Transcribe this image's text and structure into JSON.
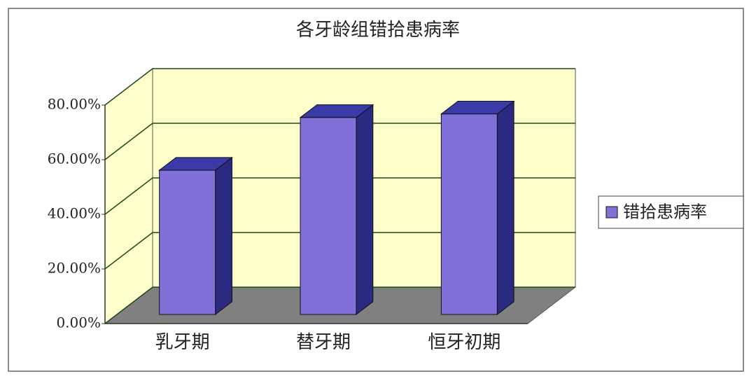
{
  "chart_data": {
    "type": "bar",
    "title": "各牙龄组错拾患病率",
    "categories": [
      "乳牙期",
      "替牙期",
      "恒牙初期"
    ],
    "series": [
      {
        "name": "错拾患病率",
        "color": "#8070d8",
        "values": [
          52.8,
          72.1,
          73.4
        ]
      }
    ],
    "ylim": [
      0,
      80
    ],
    "yticks": [
      {
        "value": 0,
        "label": "0.00%"
      },
      {
        "value": 20,
        "label": "20.00%"
      },
      {
        "value": 40,
        "label": "40.00%"
      },
      {
        "value": 60,
        "label": "60.00%"
      },
      {
        "value": 80,
        "label": "80.00%"
      }
    ],
    "grid": true,
    "legend": "right"
  }
}
